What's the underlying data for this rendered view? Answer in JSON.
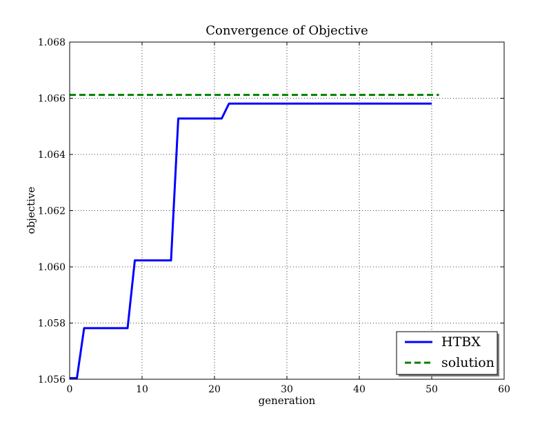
{
  "chart_data": {
    "type": "line",
    "title": "Convergence of Objective",
    "xlabel": "generation",
    "ylabel": "objective",
    "xlim": [
      0,
      60
    ],
    "ylim": [
      1.056,
      1.068
    ],
    "xticks": [
      0,
      10,
      20,
      30,
      40,
      50,
      60
    ],
    "xtick_labels": [
      "0",
      "10",
      "20",
      "30",
      "40",
      "50",
      "60"
    ],
    "yticks": [
      1.056,
      1.058,
      1.06,
      1.062,
      1.064,
      1.066,
      1.068
    ],
    "ytick_labels": [
      "1.056",
      "1.058",
      "1.060",
      "1.062",
      "1.064",
      "1.066",
      "1.068"
    ],
    "grid": true,
    "legend_position": "bottom-right",
    "series": [
      {
        "name": "HTBX",
        "color": "#0000ff",
        "style": "solid",
        "x": [
          0,
          1,
          2,
          3,
          4,
          5,
          6,
          7,
          8,
          9,
          10,
          11,
          12,
          13,
          14,
          15,
          16,
          17,
          18,
          19,
          20,
          21,
          22,
          23,
          24,
          25,
          26,
          27,
          28,
          29,
          30,
          31,
          32,
          33,
          34,
          35,
          36,
          37,
          38,
          39,
          40,
          41,
          42,
          43,
          44,
          45,
          46,
          47,
          48,
          49,
          50
        ],
        "y": [
          1.05604,
          1.05604,
          1.05782,
          1.05782,
          1.05782,
          1.05782,
          1.05782,
          1.05782,
          1.05782,
          1.06023,
          1.06023,
          1.06023,
          1.06023,
          1.06023,
          1.06023,
          1.06528,
          1.06528,
          1.06528,
          1.06528,
          1.06528,
          1.06528,
          1.06528,
          1.06581,
          1.06581,
          1.06581,
          1.06581,
          1.06581,
          1.06581,
          1.06581,
          1.06581,
          1.06581,
          1.06581,
          1.06581,
          1.06581,
          1.06581,
          1.06581,
          1.06581,
          1.06581,
          1.06581,
          1.06581,
          1.06581,
          1.06581,
          1.06581,
          1.06581,
          1.06581,
          1.06581,
          1.06581,
          1.06581,
          1.06581,
          1.06581,
          1.06581
        ]
      },
      {
        "name": "solution",
        "color": "#008000",
        "style": "dashed",
        "x": [
          0,
          51
        ],
        "y": [
          1.06612,
          1.06612
        ]
      }
    ]
  }
}
